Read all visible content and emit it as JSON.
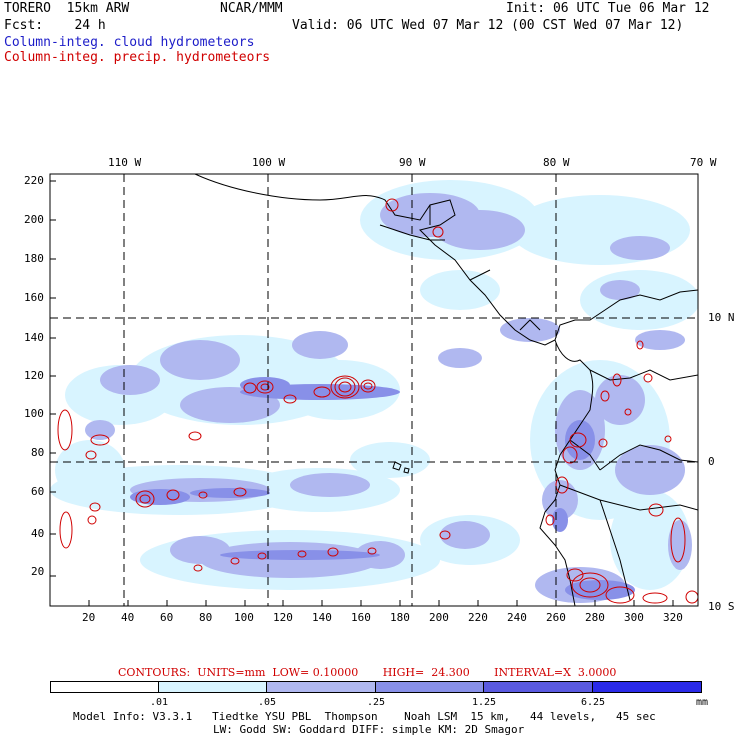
{
  "header": {
    "model": "TORERO  15km ARW",
    "center": "NCAR/MMM",
    "init": "Init: 06 UTC Tue 06 Mar 12",
    "fcst": "Fcst:    24 h",
    "valid": "Valid: 06 UTC Wed 07 Mar 12 (00 CST Wed 07 Mar 12)",
    "field1": "Column-integ. cloud hydrometeors",
    "field2": "Column-integ. precip. hydrometeors"
  },
  "colors": {
    "cloud_field": "#1c1cc8",
    "precip_field": "#d00000",
    "cloud_light": "#d8f4ff",
    "cloud_mid": "#b0b8f0",
    "cloud_heavy": "#8890e8"
  },
  "map": {
    "lon_labels": [
      "110 W",
      "100 W",
      "90 W",
      "80 W",
      "70 W"
    ],
    "lat_labels": [
      "10 N",
      "0",
      "10 S"
    ],
    "y_ticks": [
      "220",
      "200",
      "180",
      "160",
      "140",
      "120",
      "100",
      "80",
      "60",
      "40",
      "20"
    ],
    "x_ticks": [
      "20",
      "40",
      "60",
      "80",
      "100",
      "120",
      "140",
      "160",
      "180",
      "200",
      "220",
      "240",
      "260",
      "280",
      "300",
      "320"
    ]
  },
  "contours": "CONTOURS:  UNITS=mm  LOW= 0.10000       HIGH=  24.300       INTERVAL=X  3.0000",
  "colorbar": {
    "labels": [
      ".01",
      ".05",
      ".25",
      "1.25",
      "6.25",
      "mm"
    ],
    "colors": [
      "#ffffff",
      "#d8f4ff",
      "#b0b8f0",
      "#8890e8",
      "#5a5ae0",
      "#2a2ae8"
    ]
  },
  "footer": {
    "line1": "Model Info: V3.3.1   Tiedtke YSU PBL  Thompson    Noah LSM  15 km,   44 levels,   45 sec",
    "line2": "LW: Godd SW: Goddard DIFF: simple KM: 2D Smagor"
  }
}
